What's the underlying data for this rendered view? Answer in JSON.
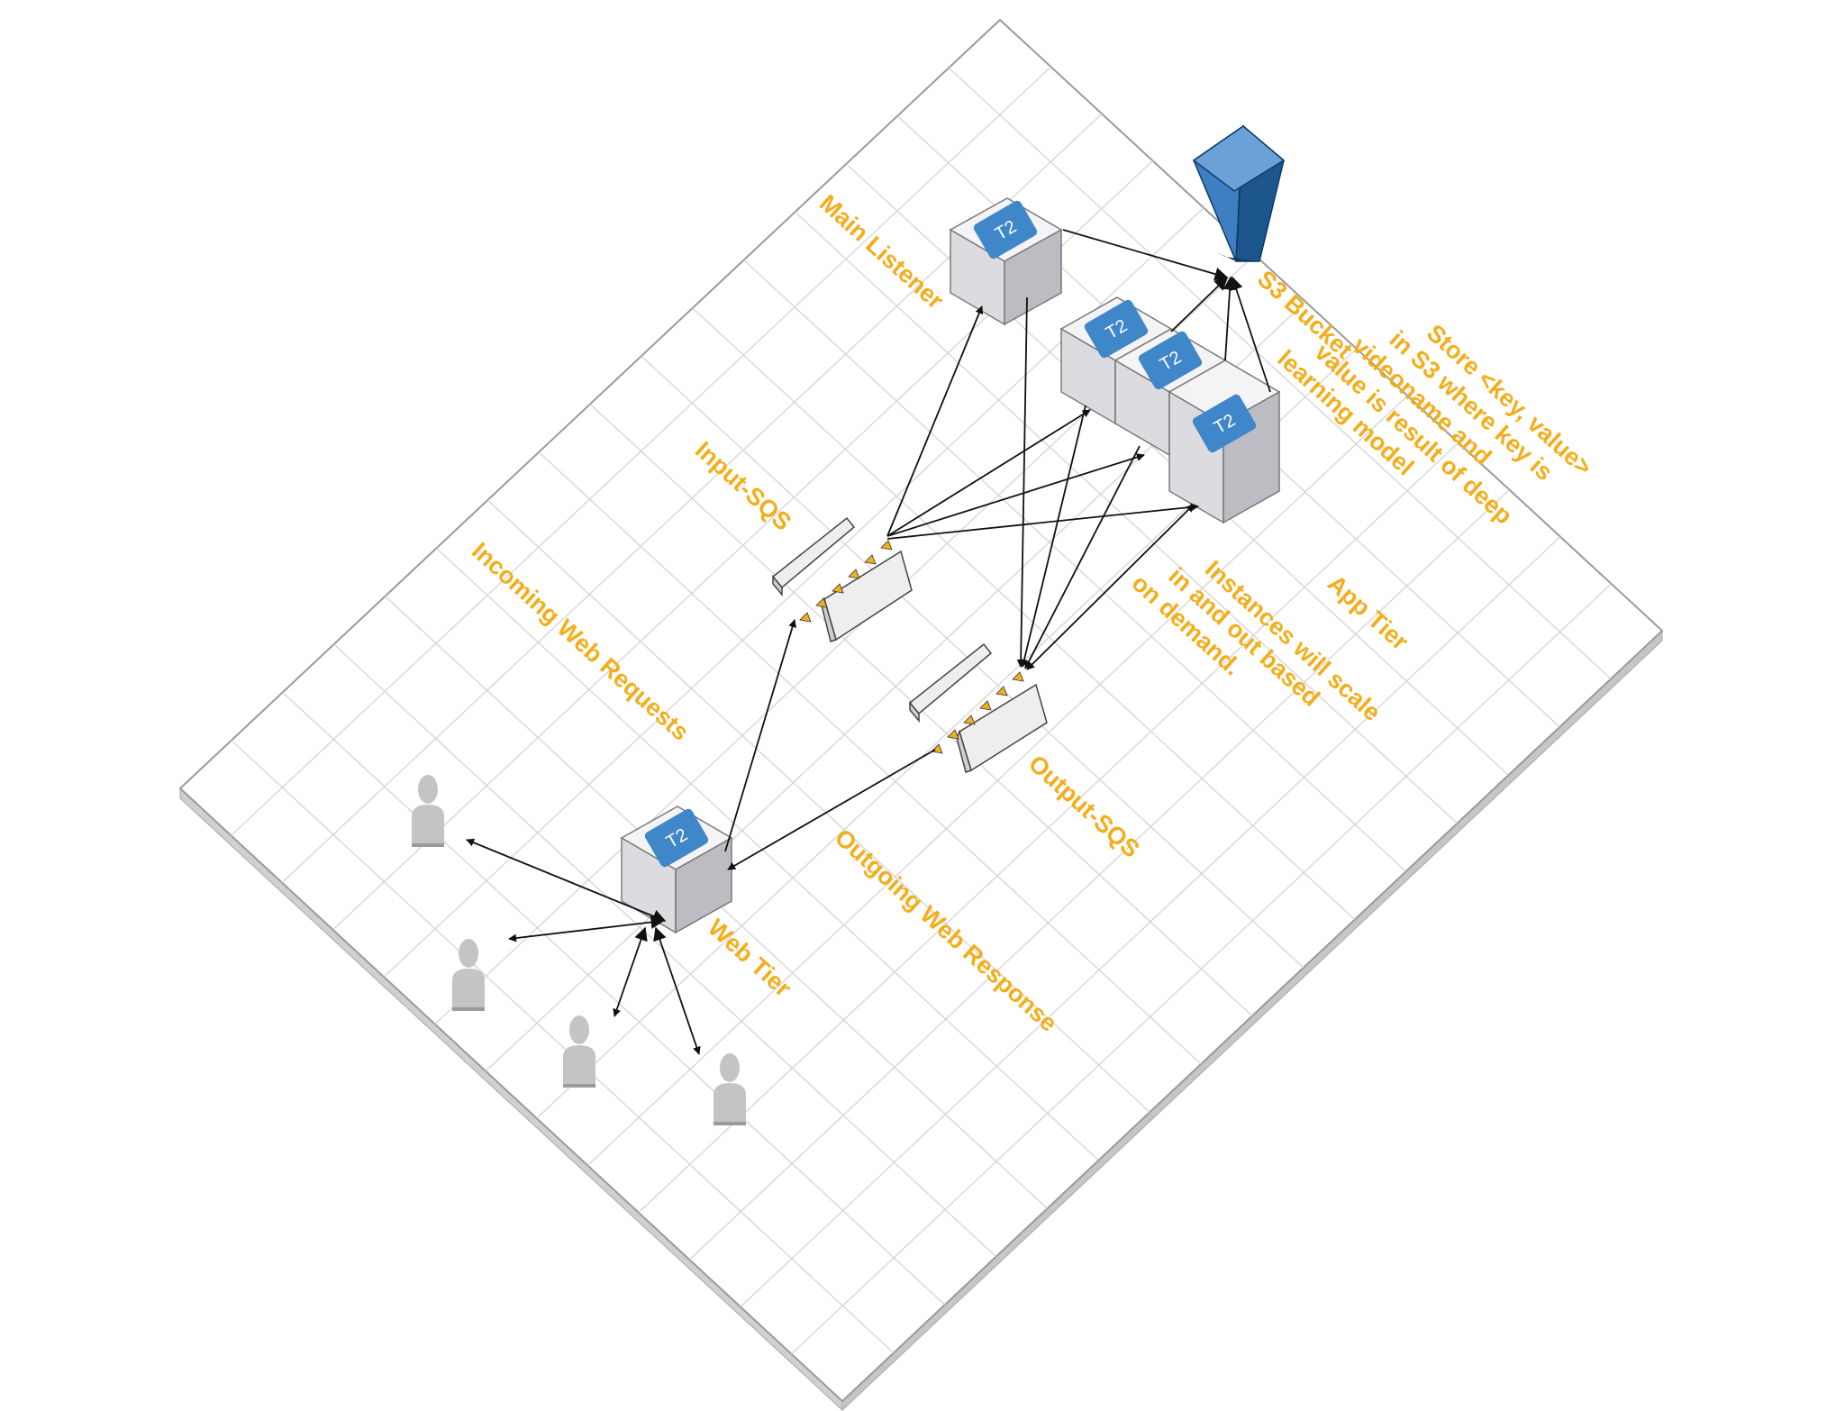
{
  "labels": {
    "main_listener": "Main Listener",
    "s3_bucket": "S3 Bucket",
    "store_note": [
      "Store <key, value>",
      "in S3 where key is",
      "videoname and",
      "value is result of deep",
      "learning model"
    ],
    "input_sqs": "Input-SQS",
    "incoming_web_requests": "Incoming Web Requests",
    "app_tier": "App Tier",
    "instances_note": [
      "Instances will scale",
      "in and out based",
      "on demand."
    ],
    "output_sqs": "Output-SQS",
    "outgoing_web_response": "Outgoing Web Response",
    "web_tier": "Web Tier"
  },
  "instances": {
    "main_listener_type": "T2",
    "web_tier_type": "T2",
    "app_tier_types": [
      "T2",
      "T2",
      "T2"
    ]
  },
  "colors": {
    "label": "#f2ae1c",
    "instance_chip": "#3f87c9",
    "bucket": "#1f5b94",
    "arrow": "#111111",
    "queue_marker": "#f2ae1c",
    "user": "#c4c4c4",
    "grid": "#d4d4d4"
  },
  "icons": {
    "instance": "ec2-instance-icon",
    "bucket": "s3-bucket-icon",
    "queue": "sqs-queue-icon",
    "user": "user-icon"
  }
}
